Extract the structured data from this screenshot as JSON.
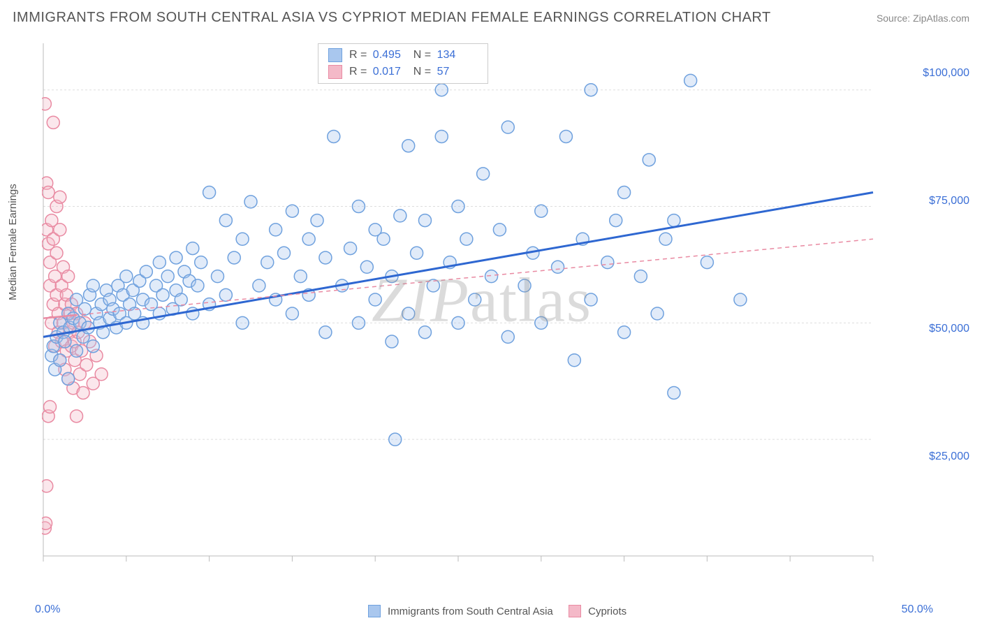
{
  "title": "IMMIGRANTS FROM SOUTH CENTRAL ASIA VS CYPRIOT MEDIAN FEMALE EARNINGS CORRELATION CHART",
  "source": "Source: ZipAtlas.com",
  "ylabel": "Median Female Earnings",
  "watermark": "ZIPatlas",
  "chart": {
    "type": "scatter",
    "xlim": [
      0,
      50
    ],
    "ylim": [
      0,
      110000
    ],
    "x_tick_positions": [
      0,
      5,
      10,
      15,
      20,
      25,
      30,
      35,
      40,
      45,
      50
    ],
    "x_tick_labels_shown": {
      "0": "0.0%",
      "50": "50.0%"
    },
    "y_gridlines": [
      25000,
      50000,
      75000,
      100000
    ],
    "y_tick_labels": [
      "$25,000",
      "$50,000",
      "$75,000",
      "$100,000"
    ],
    "background_color": "#ffffff",
    "grid_color": "#dddddd",
    "axis_color": "#bbbbbb",
    "tick_label_color": "#3b6fd6",
    "label_color": "#555555",
    "title_color": "#555555",
    "title_fontsize": 20,
    "label_fontsize": 15,
    "tick_fontsize": 16,
    "marker_radius": 9,
    "marker_stroke_width": 1.5,
    "marker_fill_opacity": 0.35,
    "series": [
      {
        "name": "Immigrants from South Central Asia",
        "color_fill": "#a9c7ee",
        "color_stroke": "#6fa1de",
        "trend": {
          "x1": 0,
          "y1": 47000,
          "x2": 50,
          "y2": 78000,
          "color": "#2e67d1",
          "width": 3,
          "dash": "none"
        },
        "R": 0.495,
        "N": 134,
        "points": [
          [
            0.5,
            43000
          ],
          [
            0.6,
            45000
          ],
          [
            0.7,
            40000
          ],
          [
            0.8,
            47000
          ],
          [
            1.0,
            42000
          ],
          [
            1.0,
            50000
          ],
          [
            1.2,
            48000
          ],
          [
            1.3,
            46000
          ],
          [
            1.5,
            38000
          ],
          [
            1.5,
            52000
          ],
          [
            1.6,
            49000
          ],
          [
            1.8,
            51000
          ],
          [
            2.0,
            44000
          ],
          [
            2.0,
            55000
          ],
          [
            2.2,
            50000
          ],
          [
            2.4,
            47000
          ],
          [
            2.5,
            53000
          ],
          [
            2.7,
            49000
          ],
          [
            2.8,
            56000
          ],
          [
            3.0,
            45000
          ],
          [
            3.0,
            58000
          ],
          [
            3.2,
            52000
          ],
          [
            3.4,
            50000
          ],
          [
            3.5,
            54000
          ],
          [
            3.6,
            48000
          ],
          [
            3.8,
            57000
          ],
          [
            4.0,
            51000
          ],
          [
            4.0,
            55000
          ],
          [
            4.2,
            53000
          ],
          [
            4.4,
            49000
          ],
          [
            4.5,
            58000
          ],
          [
            4.6,
            52000
          ],
          [
            4.8,
            56000
          ],
          [
            5.0,
            50000
          ],
          [
            5.0,
            60000
          ],
          [
            5.2,
            54000
          ],
          [
            5.4,
            57000
          ],
          [
            5.5,
            52000
          ],
          [
            5.8,
            59000
          ],
          [
            6.0,
            50000
          ],
          [
            6.0,
            55000
          ],
          [
            6.2,
            61000
          ],
          [
            6.5,
            54000
          ],
          [
            6.8,
            58000
          ],
          [
            7.0,
            52000
          ],
          [
            7.0,
            63000
          ],
          [
            7.2,
            56000
          ],
          [
            7.5,
            60000
          ],
          [
            7.8,
            53000
          ],
          [
            8.0,
            57000
          ],
          [
            8.0,
            64000
          ],
          [
            8.3,
            55000
          ],
          [
            8.5,
            61000
          ],
          [
            8.8,
            59000
          ],
          [
            9.0,
            52000
          ],
          [
            9.0,
            66000
          ],
          [
            9.3,
            58000
          ],
          [
            9.5,
            63000
          ],
          [
            10.0,
            54000
          ],
          [
            10.0,
            78000
          ],
          [
            10.5,
            60000
          ],
          [
            11.0,
            56000
          ],
          [
            11.0,
            72000
          ],
          [
            11.5,
            64000
          ],
          [
            12.0,
            50000
          ],
          [
            12.0,
            68000
          ],
          [
            12.5,
            76000
          ],
          [
            13.0,
            58000
          ],
          [
            13.5,
            63000
          ],
          [
            14.0,
            55000
          ],
          [
            14.0,
            70000
          ],
          [
            14.5,
            65000
          ],
          [
            15.0,
            52000
          ],
          [
            15.0,
            74000
          ],
          [
            15.5,
            60000
          ],
          [
            16.0,
            56000
          ],
          [
            16.0,
            68000
          ],
          [
            16.5,
            72000
          ],
          [
            17.0,
            48000
          ],
          [
            17.0,
            64000
          ],
          [
            17.5,
            90000
          ],
          [
            18.0,
            58000
          ],
          [
            18.5,
            66000
          ],
          [
            19.0,
            50000
          ],
          [
            19.0,
            75000
          ],
          [
            19.5,
            62000
          ],
          [
            20.0,
            55000
          ],
          [
            20.0,
            70000
          ],
          [
            20.5,
            68000
          ],
          [
            21.0,
            46000
          ],
          [
            21.0,
            60000
          ],
          [
            21.2,
            25000
          ],
          [
            21.5,
            73000
          ],
          [
            22.0,
            52000
          ],
          [
            22.0,
            88000
          ],
          [
            22.5,
            65000
          ],
          [
            23.0,
            48000
          ],
          [
            23.0,
            72000
          ],
          [
            23.5,
            58000
          ],
          [
            24.0,
            100000
          ],
          [
            24.0,
            90000
          ],
          [
            24.5,
            63000
          ],
          [
            25.0,
            50000
          ],
          [
            25.0,
            75000
          ],
          [
            25.5,
            68000
          ],
          [
            26.0,
            55000
          ],
          [
            26.5,
            82000
          ],
          [
            27.0,
            60000
          ],
          [
            27.5,
            70000
          ],
          [
            28.0,
            47000
          ],
          [
            28.0,
            92000
          ],
          [
            29.0,
            58000
          ],
          [
            29.5,
            65000
          ],
          [
            30.0,
            50000
          ],
          [
            30.0,
            74000
          ],
          [
            31.0,
            62000
          ],
          [
            31.5,
            90000
          ],
          [
            32.0,
            42000
          ],
          [
            32.5,
            68000
          ],
          [
            33.0,
            55000
          ],
          [
            33.0,
            100000
          ],
          [
            34.0,
            63000
          ],
          [
            34.5,
            72000
          ],
          [
            35.0,
            48000
          ],
          [
            35.0,
            78000
          ],
          [
            36.0,
            60000
          ],
          [
            36.5,
            85000
          ],
          [
            37.0,
            52000
          ],
          [
            37.5,
            68000
          ],
          [
            38.0,
            35000
          ],
          [
            38.0,
            72000
          ],
          [
            39.0,
            102000
          ],
          [
            40.0,
            63000
          ],
          [
            42.0,
            55000
          ]
        ]
      },
      {
        "name": "Cypriots",
        "color_fill": "#f4b9c8",
        "color_stroke": "#e98aa2",
        "trend": {
          "x1": 0,
          "y1": 51000,
          "x2": 50,
          "y2": 68000,
          "color": "#e98aa2",
          "width": 1.5,
          "dash": "6,5"
        },
        "trend_solid_segment": {
          "x1": 0,
          "y1": 51000,
          "x2": 2.0,
          "y2": 51700
        },
        "R": 0.017,
        "N": 57,
        "points": [
          [
            0.1,
            97000
          ],
          [
            0.2,
            80000
          ],
          [
            0.2,
            70000
          ],
          [
            0.3,
            67000
          ],
          [
            0.3,
            78000
          ],
          [
            0.4,
            58000
          ],
          [
            0.4,
            63000
          ],
          [
            0.5,
            72000
          ],
          [
            0.5,
            50000
          ],
          [
            0.6,
            68000
          ],
          [
            0.6,
            54000
          ],
          [
            0.7,
            60000
          ],
          [
            0.7,
            45000
          ],
          [
            0.8,
            56000
          ],
          [
            0.8,
            65000
          ],
          [
            0.9,
            48000
          ],
          [
            0.9,
            52000
          ],
          [
            1.0,
            70000
          ],
          [
            1.0,
            42000
          ],
          [
            1.1,
            58000
          ],
          [
            1.1,
            46000
          ],
          [
            1.2,
            62000
          ],
          [
            1.2,
            50000
          ],
          [
            1.3,
            54000
          ],
          [
            1.3,
            40000
          ],
          [
            1.4,
            56000
          ],
          [
            1.4,
            44000
          ],
          [
            1.5,
            60000
          ],
          [
            1.5,
            38000
          ],
          [
            1.6,
            52000
          ],
          [
            1.6,
            48000
          ],
          [
            1.7,
            45000
          ],
          [
            1.7,
            54000
          ],
          [
            1.8,
            36000
          ],
          [
            1.8,
            50000
          ],
          [
            1.9,
            42000
          ],
          [
            1.9,
            46000
          ],
          [
            2.0,
            30000
          ],
          [
            2.0,
            52000
          ],
          [
            2.1,
            48000
          ],
          [
            2.2,
            39000
          ],
          [
            2.3,
            44000
          ],
          [
            2.4,
            35000
          ],
          [
            2.5,
            50000
          ],
          [
            2.6,
            41000
          ],
          [
            2.8,
            46000
          ],
          [
            3.0,
            37000
          ],
          [
            3.2,
            43000
          ],
          [
            3.5,
            39000
          ],
          [
            0.1,
            6000
          ],
          [
            0.15,
            7000
          ],
          [
            0.2,
            15000
          ],
          [
            0.6,
            93000
          ],
          [
            0.8,
            75000
          ],
          [
            1.0,
            77000
          ],
          [
            0.3,
            30000
          ],
          [
            0.4,
            32000
          ]
        ]
      }
    ],
    "legend_bottom": [
      {
        "label": "Immigrants from South Central Asia",
        "fill": "#a9c7ee",
        "stroke": "#6fa1de"
      },
      {
        "label": "Cypriots",
        "fill": "#f4b9c8",
        "stroke": "#e98aa2"
      }
    ],
    "stats_box": {
      "rows": [
        {
          "fill": "#a9c7ee",
          "stroke": "#6fa1de",
          "R": "0.495",
          "N": "134"
        },
        {
          "fill": "#f4b9c8",
          "stroke": "#e98aa2",
          "R": "0.017",
          "N": "57"
        }
      ]
    }
  }
}
